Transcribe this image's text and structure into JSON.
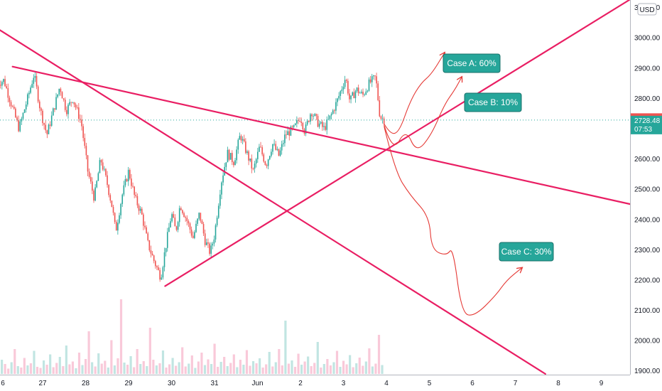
{
  "chart_data": {
    "type": "candlestick",
    "currency": "USD",
    "colors": {
      "up": "#26a69a",
      "down": "#ef5350",
      "trendline": "#e91e63",
      "arrow": "#e53935",
      "label_bg": "#26a69a",
      "label_border": "#18706a",
      "price_tag_last": "#ef5350",
      "price_tag_current": "#26a69a",
      "current_price_line": "#26a69a"
    },
    "y_axis": {
      "range": [
        1890,
        3125
      ],
      "ticks": [
        "3100.00",
        "3000.00",
        "2900.00",
        "2800.00",
        "2600.00",
        "2500.00",
        "2400.00",
        "2300.00",
        "2200.00",
        "2100.00",
        "2000.00",
        "1900.00"
      ]
    },
    "x_axis": {
      "ticks": [
        {
          "label": "6",
          "day": -1
        },
        {
          "label": "27",
          "day": 0
        },
        {
          "label": "28",
          "day": 1
        },
        {
          "label": "29",
          "day": 2
        },
        {
          "label": "30",
          "day": 3
        },
        {
          "label": "31",
          "day": 4
        },
        {
          "label": "Jun",
          "day": 5
        },
        {
          "label": "2",
          "day": 6
        },
        {
          "label": "3",
          "day": 7
        },
        {
          "label": "4",
          "day": 8
        },
        {
          "label": "5",
          "day": 9
        },
        {
          "label": "6",
          "day": 10
        },
        {
          "label": "7",
          "day": 11
        },
        {
          "label": "8",
          "day": 12
        },
        {
          "label": "9",
          "day": 13
        }
      ]
    },
    "price_path": [
      [
        -1.05,
        2850
      ],
      [
        -0.9,
        2860
      ],
      [
        -0.75,
        2790
      ],
      [
        -0.55,
        2700
      ],
      [
        -0.35,
        2800
      ],
      [
        -0.2,
        2880
      ],
      [
        -0.05,
        2760
      ],
      [
        0.1,
        2680
      ],
      [
        0.25,
        2760
      ],
      [
        0.4,
        2840
      ],
      [
        0.55,
        2760
      ],
      [
        0.7,
        2800
      ],
      [
        0.9,
        2720
      ],
      [
        1.05,
        2560
      ],
      [
        1.2,
        2470
      ],
      [
        1.35,
        2600
      ],
      [
        1.5,
        2520
      ],
      [
        1.62,
        2440
      ],
      [
        1.7,
        2360
      ],
      [
        1.85,
        2480
      ],
      [
        2.0,
        2560
      ],
      [
        2.15,
        2470
      ],
      [
        2.3,
        2420
      ],
      [
        2.45,
        2320
      ],
      [
        2.6,
        2260
      ],
      [
        2.75,
        2210
      ],
      [
        2.85,
        2300
      ],
      [
        3.0,
        2420
      ],
      [
        3.1,
        2360
      ],
      [
        3.2,
        2450
      ],
      [
        3.35,
        2400
      ],
      [
        3.5,
        2340
      ],
      [
        3.65,
        2420
      ],
      [
        3.78,
        2330
      ],
      [
        3.9,
        2290
      ],
      [
        4.0,
        2350
      ],
      [
        4.15,
        2520
      ],
      [
        4.3,
        2620
      ],
      [
        4.45,
        2590
      ],
      [
        4.6,
        2680
      ],
      [
        4.75,
        2620
      ],
      [
        4.9,
        2560
      ],
      [
        5.05,
        2640
      ],
      [
        5.2,
        2580
      ],
      [
        5.35,
        2650
      ],
      [
        5.5,
        2610
      ],
      [
        5.65,
        2680
      ],
      [
        5.85,
        2700
      ],
      [
        6.0,
        2740
      ],
      [
        6.1,
        2690
      ],
      [
        6.25,
        2760
      ],
      [
        6.4,
        2720
      ],
      [
        6.55,
        2700
      ],
      [
        6.7,
        2740
      ],
      [
        6.85,
        2790
      ],
      [
        7.05,
        2870
      ],
      [
        7.15,
        2790
      ],
      [
        7.3,
        2830
      ],
      [
        7.45,
        2810
      ],
      [
        7.6,
        2850
      ],
      [
        7.75,
        2870
      ],
      [
        7.85,
        2740
      ],
      [
        7.95,
        2728.48
      ]
    ],
    "volume_range": [
      0,
      260
    ],
    "volume": [
      12,
      40,
      28,
      15,
      33,
      70,
      22,
      18,
      45,
      24,
      30,
      65,
      20,
      17,
      38,
      26,
      55,
      19,
      31,
      48,
      22,
      80,
      27,
      35,
      16,
      60,
      25,
      42,
      120,
      33,
      21,
      58,
      29,
      37,
      18,
      95,
      24,
      44,
      210,
      32,
      26,
      50,
      19,
      70,
      28,
      36,
      22,
      130,
      40,
      24,
      30,
      66,
      18,
      27,
      45,
      23,
      33,
      75,
      21,
      29,
      52,
      17,
      35,
      60,
      25,
      41,
      28,
      85,
      20,
      34,
      48,
      22,
      31,
      55,
      19,
      40,
      26,
      67,
      23,
      36,
      30,
      44,
      18,
      27,
      62,
      21,
      33,
      70,
      24,
      150,
      29,
      38,
      20,
      57,
      26,
      35,
      49,
      22,
      31,
      90,
      18,
      28,
      42,
      24,
      33,
      65,
      20,
      37,
      27,
      53,
      19,
      30,
      46,
      23,
      35,
      72,
      21,
      29,
      110,
      25
    ],
    "trendlines": [
      {
        "from": [
          -1.1,
          3035
        ],
        "to": [
          11.7,
          1890
        ]
      },
      {
        "from": [
          -0.7,
          2905
        ],
        "to": [
          13.7,
          2450
        ]
      },
      {
        "from": [
          2.85,
          2180
        ],
        "to": [
          13.65,
          3125
        ]
      }
    ],
    "scenarios": [
      {
        "label": "Case A: 60%",
        "path": [
          [
            7.95,
            2715
          ],
          [
            8.1,
            2680
          ],
          [
            8.3,
            2690
          ],
          [
            8.55,
            2790
          ],
          [
            8.8,
            2850
          ],
          [
            9.05,
            2880
          ],
          [
            9.35,
            2950
          ]
        ]
      },
      {
        "label": "Case B: 10%",
        "path": [
          [
            7.95,
            2710
          ],
          [
            8.15,
            2620
          ],
          [
            8.45,
            2700
          ],
          [
            8.7,
            2620
          ],
          [
            9.05,
            2680
          ],
          [
            9.35,
            2780
          ],
          [
            9.6,
            2830
          ],
          [
            9.75,
            2870
          ]
        ]
      },
      {
        "label": "Case C: 30%",
        "path": [
          [
            7.95,
            2705
          ],
          [
            8.2,
            2560
          ],
          [
            8.55,
            2480
          ],
          [
            9.0,
            2410
          ],
          [
            9.05,
            2300
          ],
          [
            9.4,
            2280
          ],
          [
            9.55,
            2310
          ],
          [
            9.75,
            2090
          ],
          [
            10.05,
            2080
          ],
          [
            10.55,
            2150
          ],
          [
            10.8,
            2200
          ],
          [
            11.15,
            2240
          ]
        ]
      }
    ],
    "last_price": "2734.32",
    "current_price": "2728.48",
    "countdown": "07:53"
  }
}
